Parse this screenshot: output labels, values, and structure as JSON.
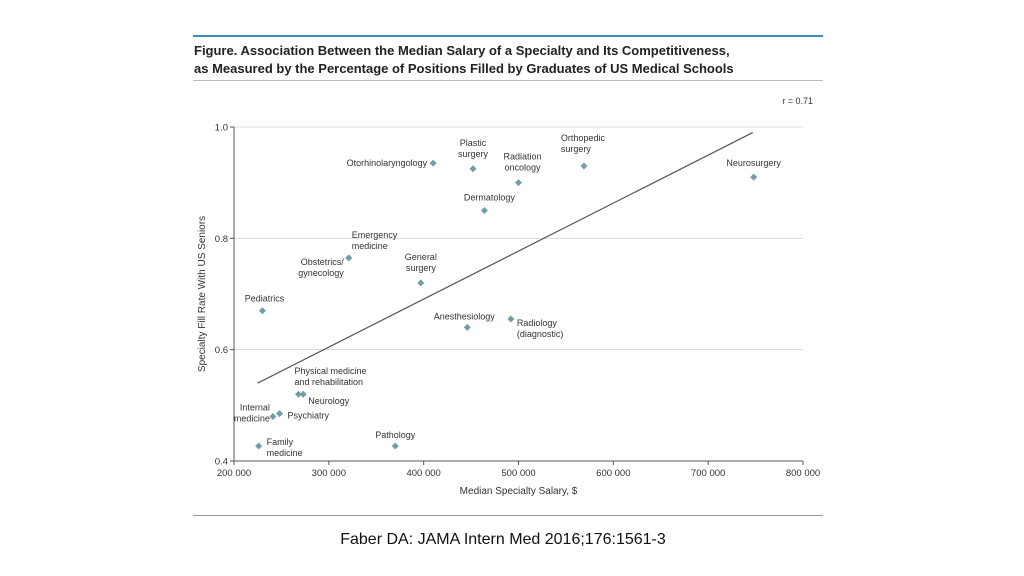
{
  "figure": {
    "title_line1": "Figure. Association Between the Median Salary of a Specialty and Its Competitiveness,",
    "title_line2": "as Measured by the Percentage of Positions Filled by Graduates of US Medical Schools"
  },
  "citation": "Faber DA: JAMA Intern Med 2016;176:1561-3",
  "colors": {
    "marker": "#6f9ea6",
    "grid": "#d9d9d9",
    "axis": "#555555",
    "line": "#555555"
  },
  "chart_data": {
    "type": "scatter",
    "title": "Association Between the Median Salary of a Specialty and Its Competitiveness",
    "xlabel": "Median Specialty Salary, $",
    "ylabel": "Specialty Fill Rate With US Seniors",
    "xlim": [
      200000,
      800000
    ],
    "ylim": [
      0.4,
      1.0
    ],
    "x_ticks": [
      200000,
      300000,
      400000,
      500000,
      600000,
      700000,
      800000
    ],
    "x_tick_labels": [
      "200 000",
      "300 000",
      "400 000",
      "500 000",
      "600 000",
      "700 000",
      "800 000"
    ],
    "y_ticks": [
      0.4,
      0.6,
      0.8,
      1.0
    ],
    "y_tick_labels": [
      "0.4",
      "0.6",
      "0.8",
      "1.0"
    ],
    "grid": true,
    "annotation": "r = 0.71",
    "trendline": {
      "x": [
        225000,
        747000
      ],
      "y": [
        0.54,
        0.99
      ]
    },
    "points": [
      {
        "label": [
          "Otorhinolaryngology"
        ],
        "x": 410000,
        "y": 0.935,
        "anchor": "end",
        "dx": -6,
        "dy": 0
      },
      {
        "label": [
          "Plastic",
          "surgery"
        ],
        "x": 452000,
        "y": 0.925,
        "anchor": "middle",
        "dx": 0,
        "dy": -26
      },
      {
        "label": [
          "Radiation",
          "oncology"
        ],
        "x": 500000,
        "y": 0.9,
        "anchor": "middle",
        "dx": 4,
        "dy": -26
      },
      {
        "label": [
          "Orthopedic",
          "surgery"
        ],
        "x": 569000,
        "y": 0.93,
        "anchor": "start",
        "dx": -23,
        "dy": -28
      },
      {
        "label": [
          "Neurosurgery"
        ],
        "x": 748000,
        "y": 0.91,
        "anchor": "middle",
        "dx": 0,
        "dy": -14
      },
      {
        "label": [
          "Dermatology"
        ],
        "x": 464000,
        "y": 0.85,
        "anchor": "middle",
        "dx": 5,
        "dy": -13
      },
      {
        "label": [
          "Emergency",
          "medicine"
        ],
        "x": 321000,
        "y": 0.765,
        "anchor": "start",
        "dx": 3,
        "dy": -23
      },
      {
        "label": [
          "Obstetrics/",
          "gynecology"
        ],
        "x": 321000,
        "y": 0.765,
        "anchor": "end",
        "dx": -5,
        "dy": 4
      },
      {
        "label": [
          "General",
          "surgery"
        ],
        "x": 397000,
        "y": 0.72,
        "anchor": "middle",
        "dx": 0,
        "dy": -26
      },
      {
        "label": [
          "Pediatrics"
        ],
        "x": 230000,
        "y": 0.67,
        "anchor": "middle",
        "dx": 2,
        "dy": -12
      },
      {
        "label": [
          "Anesthesiology"
        ],
        "x": 446000,
        "y": 0.64,
        "anchor": "middle",
        "dx": -3,
        "dy": -11
      },
      {
        "label": [
          "Radiology",
          "(diagnostic)"
        ],
        "x": 492000,
        "y": 0.655,
        "anchor": "start",
        "dx": 6,
        "dy": 4
      },
      {
        "label": [
          "Physical medicine",
          "and rehabilitation"
        ],
        "x": 268000,
        "y": 0.52,
        "anchor": "start",
        "dx": -4,
        "dy": -23
      },
      {
        "label": [
          "Neurology"
        ],
        "x": 273000,
        "y": 0.52,
        "anchor": "start",
        "dx": 5,
        "dy": 7
      },
      {
        "label": [
          "Psychiatry"
        ],
        "x": 248000,
        "y": 0.485,
        "anchor": "start",
        "dx": 8,
        "dy": 2
      },
      {
        "label": [
          "Internal",
          "medicine"
        ],
        "x": 241000,
        "y": 0.48,
        "anchor": "end",
        "dx": -3,
        "dy": -9
      },
      {
        "label": [
          "Family",
          "medicine"
        ],
        "x": 226000,
        "y": 0.427,
        "anchor": "start",
        "dx": 8,
        "dy": -4
      },
      {
        "label": [
          "Pathology"
        ],
        "x": 370000,
        "y": 0.427,
        "anchor": "middle",
        "dx": 0,
        "dy": -11
      }
    ]
  }
}
